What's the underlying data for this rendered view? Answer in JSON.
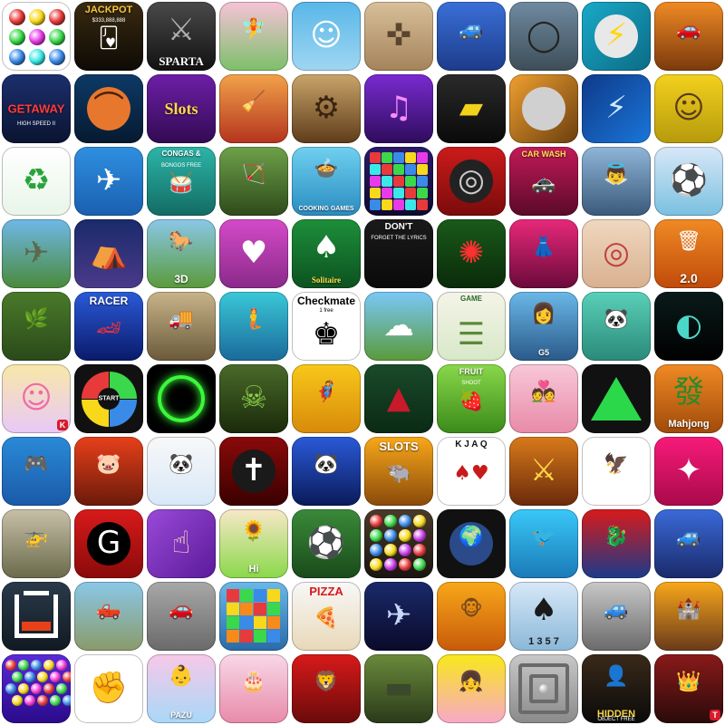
{
  "icons": [
    {
      "id": "jewel-marble-shooter",
      "bg": "linear-gradient(135deg,#1b3b12,#4a8a2a 50,#20420e)",
      "art": "orbs"
    },
    {
      "id": "jackpot-casino-cards",
      "bg": "linear-gradient(180deg,#3a2a10,#0d0a05)",
      "caption": "JACKPOT",
      "caption_pos": "top",
      "caption_size": 11,
      "caption_color": "#f4c542",
      "sub": "$333,888,888",
      "glyph": "🂻",
      "glyph_color": "#ffffff"
    },
    {
      "id": "sparta-warrior",
      "bg": "linear-gradient(180deg,#4a4a4a,#111111)",
      "caption": "SPARTA",
      "caption_pos": "bot",
      "caption_size": 13,
      "serif": true,
      "glyph": "⚔",
      "glyph_color": "#b0b0b0"
    },
    {
      "id": "fairy-dress-up",
      "bg": "linear-gradient(180deg,#f7c2d8,#7cc06a)",
      "glyph": "🧚",
      "glyph_color": "#ff6fa8"
    },
    {
      "id": "adventure-time-finn",
      "bg": "linear-gradient(180deg,#59b7e8,#9fd6f2)",
      "glyph": "☺",
      "glyph_color": "#ffffff"
    },
    {
      "id": "desert-sniper-soldiers",
      "bg": "linear-gradient(180deg,#d8c09a,#a5835a)",
      "glyph": "✜",
      "glyph_color": "#5a4630"
    },
    {
      "id": "monster-truck-race",
      "bg": "linear-gradient(180deg,#3a6fd8,#1d3c8a)",
      "glyph": "🚙",
      "glyph_color": "#ff4040"
    },
    {
      "id": "bike-stunt-loop",
      "bg": "linear-gradient(180deg,#6f8aa0,#3e4e58)",
      "glyph": "◯",
      "glyph_color": "#222222"
    },
    {
      "id": "lightning-ball",
      "bg": "linear-gradient(135deg,#19a9c9,#0c6c85)",
      "glyph": "⚡",
      "glyph_color": "#ffd700",
      "disc": "#e8e8e8"
    },
    {
      "id": "sports-car-sunset",
      "bg": "linear-gradient(180deg,#f08a24,#7a3a0c)",
      "glyph": "🚗",
      "glyph_color": "#ffb030"
    },
    {
      "id": "getaway-high-speed",
      "bg": "linear-gradient(180deg,#1c2f6e,#0a1431)",
      "caption": "GETAWAY",
      "caption_pos": "mid",
      "caption_size": 13,
      "caption_color": "#ff3b3b",
      "sub": "HIGH SPEED II"
    },
    {
      "id": "basketball-shot",
      "bg": "linear-gradient(180deg,#0d3a66,#061a30)",
      "disc": "#e8772e",
      "glyph": "⌒",
      "glyph_color": "#4a2108"
    },
    {
      "id": "vegas-slots",
      "bg": "linear-gradient(180deg,#6d1fa8,#320a52)",
      "caption": "Slots",
      "caption_pos": "mid",
      "caption_size": 18,
      "caption_color": "#ffd84a",
      "serif": true
    },
    {
      "id": "witch-broom-runner",
      "bg": "linear-gradient(180deg,#f2a24a,#b4341e)",
      "glyph": "🧹",
      "glyph_color": "#5b2a10"
    },
    {
      "id": "steampunk-robot",
      "bg": "linear-gradient(180deg,#c9a46a,#5e3c1a)",
      "glyph": "⚙",
      "glyph_color": "#3a2410"
    },
    {
      "id": "neon-girl-music",
      "bg": "linear-gradient(180deg,#7a2bd1,#2e0c5c)",
      "glyph": "♫",
      "glyph_color": "#f58cff"
    },
    {
      "id": "yellow-supercar",
      "bg": "linear-gradient(180deg,#2a2a2a,#0a0a0a)",
      "glyph": "▰",
      "glyph_color": "#f2d21a"
    },
    {
      "id": "ball-ramp-orange",
      "bg": "linear-gradient(135deg,#f0a030,#6a3e0e)",
      "disc": "#d0d0d0"
    },
    {
      "id": "electric-lightning-blue",
      "bg": "linear-gradient(135deg,#0e3a8a,#1a76d8)",
      "glyph": "⚡",
      "glyph_color": "#cfe9ff"
    },
    {
      "id": "yellow-frame-portrait",
      "bg": "linear-gradient(180deg,#f3d11d,#b59a0c)",
      "glyph": "☺",
      "glyph_color": "#5a3a1a"
    },
    {
      "id": "recycle-tap-game",
      "bg": "linear-gradient(180deg,#ffffff,#e8f5e8)",
      "glyph": "♻",
      "glyph_color": "#2aa33a"
    },
    {
      "id": "airplane-flight",
      "bg": "linear-gradient(180deg,#2f8fe0,#1a5fb0)",
      "glyph": "✈",
      "glyph_color": "#ffffff"
    },
    {
      "id": "congas-bongos",
      "bg": "linear-gradient(180deg,#2cb5a8,#136b63)",
      "caption": "CONGAS &",
      "caption_pos": "top",
      "caption_size": 8,
      "caption_color": "#ffffff",
      "sub": "BONGOS FREE",
      "glyph": "🥁",
      "glyph_color": "#8a4a1a"
    },
    {
      "id": "native-archer",
      "bg": "linear-gradient(180deg,#6ea14a,#2e4a1a)",
      "glyph": "🏹",
      "glyph_color": "#4a2a10"
    },
    {
      "id": "cooking-games",
      "bg": "linear-gradient(180deg,#6fd0f0,#2a8cc0)",
      "caption": "COOKING GAMES",
      "caption_pos": "bot",
      "caption_size": 7,
      "caption_color": "#ffffff",
      "glyph": "🍲",
      "glyph_color": "#ff7060"
    },
    {
      "id": "block-breaker-colors",
      "bg": "linear-gradient(180deg,#2b1a6a,#0f0a2e)",
      "art": "blocks"
    },
    {
      "id": "car-tyre-wheel",
      "bg": "linear-gradient(180deg,#cc1b1b,#7a0b0b)",
      "disc": "#222222",
      "glyph": "◎",
      "glyph_color": "#cccccc"
    },
    {
      "id": "police-car-wash",
      "bg": "linear-gradient(180deg,#c21a58,#5a0a28)",
      "caption": "CAR WASH",
      "caption_pos": "top",
      "caption_size": 9,
      "caption_color": "#ffe14a",
      "glyph": "🚓",
      "glyph_color": "#ffffff"
    },
    {
      "id": "angel-wings",
      "bg": "linear-gradient(180deg,#8fb5d8,#3a5a7a)",
      "glyph": "👼",
      "glyph_color": "#ffffff"
    },
    {
      "id": "tiki-football",
      "bg": "linear-gradient(180deg,#d8e8f8,#7ac0e0)",
      "glyph": "⚽",
      "glyph_color": "#222222"
    },
    {
      "id": "fighter-jet-attack",
      "bg": "linear-gradient(180deg,#6fb8e8,#4a8a3a)",
      "glyph": "✈",
      "glyph_color": "#5a6a4a"
    },
    {
      "id": "cartoon-camping",
      "bg": "linear-gradient(180deg,#1a2a6a,#4a3a8a)",
      "glyph": "⛺",
      "glyph_color": "#ff9a30"
    },
    {
      "id": "horse-3d",
      "bg": "linear-gradient(180deg,#8ac8e8,#5a9a3a)",
      "caption": "3D",
      "caption_pos": "bot",
      "caption_size": 12,
      "caption_color": "#ffffff",
      "glyph": "🐎",
      "glyph_color": "#7a4a20"
    },
    {
      "id": "park-kissing",
      "bg": "linear-gradient(180deg,#d44ac8,#8a2a8a)",
      "glyph": "♥",
      "glyph_color": "#ffffff"
    },
    {
      "id": "solitaire-magico",
      "bg": "linear-gradient(180deg,#1d8f3a,#0c5220)",
      "caption": "Solitaire",
      "caption_pos": "bot",
      "caption_size": 9,
      "caption_color": "#ffe14a",
      "serif": true,
      "glyph": "♠",
      "glyph_color": "#ffffff"
    },
    {
      "id": "dont-forget-lyrics",
      "bg": "linear-gradient(180deg,#1a1a1a,#0a0a0a)",
      "caption": "DON'T",
      "caption_pos": "top",
      "caption_size": 10,
      "caption_color": "#ffffff",
      "sub": "FORGET THE LYRICS"
    },
    {
      "id": "fireworks-green",
      "bg": "linear-gradient(180deg,#1a5a1a,#0a2a0a)",
      "glyph": "✺",
      "glyph_color": "#ff3030"
    },
    {
      "id": "party-fashion-girl",
      "bg": "linear-gradient(180deg,#e8287a,#6a0a3a)",
      "glyph": "👗",
      "glyph_color": "#ffd0e8"
    },
    {
      "id": "sushi-roll-tiles",
      "bg": "linear-gradient(180deg,#f0d8c0,#d8b090)",
      "glyph": "◎",
      "glyph_color": "#c04040"
    },
    {
      "id": "paper-toss-2",
      "bg": "linear-gradient(180deg,#f08a24,#c04a0a)",
      "caption": "2.0",
      "caption_pos": "bot",
      "caption_size": 14,
      "caption_color": "#ffffff",
      "glyph": "🗑",
      "glyph_color": "#ffffff"
    },
    {
      "id": "jungle-adventure",
      "bg": "linear-gradient(180deg,#4a7a2a,#2a4a1a)",
      "glyph": "🌿",
      "glyph_color": "#8ad04a"
    },
    {
      "id": "racer-2",
      "bg": "linear-gradient(180deg,#2a5ad8,#0a1a6a)",
      "caption": "RACER",
      "caption_pos": "top",
      "caption_size": 12,
      "caption_color": "#ffffff",
      "glyph": "🏎",
      "glyph_color": "#ff3030"
    },
    {
      "id": "army-truck",
      "bg": "linear-gradient(180deg,#c8b48a,#6a5a3a)",
      "glyph": "🚚",
      "glyph_color": "#3a4a2a"
    },
    {
      "id": "mermaid-princess",
      "bg": "linear-gradient(180deg,#3ac8d8,#1a6a9a)",
      "glyph": "🧜",
      "glyph_color": "#ff6a9a"
    },
    {
      "id": "checkmate-chess",
      "bg": "#ffffff",
      "caption": "Checkmate",
      "caption_pos": "top",
      "caption_size": 12,
      "caption_color": "#000000",
      "dark": true,
      "glyph": "♚",
      "glyph_color": "#000000",
      "sub": "1   free",
      "sub_color": "#000000"
    },
    {
      "id": "platform-jumper",
      "bg": "linear-gradient(180deg,#7ac8f8,#5a9a3a)",
      "glyph": "☁",
      "glyph_color": "#ffffff"
    },
    {
      "id": "brain-game-quiz",
      "bg": "linear-gradient(180deg,#f4f4e8,#d8e8c8)",
      "caption": "GAME",
      "caption_pos": "top",
      "caption_size": 8,
      "caption_color": "#2a6a2a",
      "dark": true,
      "glyph": "☰",
      "glyph_color": "#5a8a3a"
    },
    {
      "id": "hidden-detective-g5",
      "bg": "linear-gradient(180deg,#6ab8e8,#2a5a8a)",
      "caption": "G5",
      "caption_pos": "bot",
      "caption_size": 9,
      "caption_color": "#ffffff",
      "glyph": "👩",
      "glyph_color": "#c07040"
    },
    {
      "id": "kids-animals-panda",
      "bg": "linear-gradient(180deg,#5ad0b8,#2a8a7a)",
      "glyph": "🐼",
      "glyph_color": "#222222"
    },
    {
      "id": "dark-spotlight",
      "bg": "linear-gradient(180deg,#0a1a1a,#000000)",
      "glyph": "◐",
      "glyph_color": "#4ad8c8"
    },
    {
      "id": "anime-girl-k",
      "bg": "linear-gradient(180deg,#f8e8a8,#e8c8f8)",
      "glyph": "☺",
      "glyph_color": "#f06aa8",
      "badge": "K",
      "badge_color": "#d81a2a"
    },
    {
      "id": "simon-colors-start",
      "bg": "#111111",
      "art": "simon",
      "caption": "START",
      "caption_pos": "mid",
      "caption_size": 7,
      "caption_color": "#ffffff"
    },
    {
      "id": "neon-green-ring",
      "bg": "#000000",
      "art": "ring"
    },
    {
      "id": "zombie-horde",
      "bg": "linear-gradient(180deg,#4a6a2a,#1a2a0a)",
      "glyph": "☠",
      "glyph_color": "#8ad04a"
    },
    {
      "id": "superhero-runner",
      "bg": "linear-gradient(180deg,#f8c81a,#d88a0a)",
      "glyph": "🦸",
      "glyph_color": "#2a2a6a"
    },
    {
      "id": "minnesota-wild",
      "bg": "linear-gradient(180deg,#1a4a2a,#0a2a14)",
      "glyph": "▲",
      "glyph_color": "#c81a2a"
    },
    {
      "id": "fruit-shoot",
      "bg": "linear-gradient(180deg,#8ad84a,#3a8a1a)",
      "caption": "FRUIT",
      "caption_pos": "top",
      "caption_size": 9,
      "caption_color": "#ffffff",
      "sub": "SHOOT",
      "glyph": "🍓",
      "glyph_color": "#e81a3a"
    },
    {
      "id": "just-married-couple",
      "bg": "linear-gradient(180deg,#f8c8d8,#e88aa8)",
      "glyph": "💑",
      "glyph_color": "#8a2a4a"
    },
    {
      "id": "green-shapes-dark",
      "bg": "#111111",
      "art": "triangle"
    },
    {
      "id": "mahjong-tiles",
      "bg": "linear-gradient(180deg,#f08a24,#a04a0a)",
      "caption": "Mahjong",
      "caption_pos": "bot",
      "caption_size": 11,
      "caption_color": "#ffffff",
      "glyph": "發",
      "glyph_color": "#2a8a2a"
    },
    {
      "id": "learn-spanish-games",
      "bg": "linear-gradient(180deg,#2a8ad8,#1a5aa8)",
      "glyph": "🎮",
      "glyph_color": "#ff4a6a"
    },
    {
      "id": "angry-pig-fire",
      "bg": "linear-gradient(180deg,#e8401a,#6a1a0a)",
      "glyph": "🐷",
      "glyph_color": "#5ac83a"
    },
    {
      "id": "panda-kid-magnifier",
      "bg": "linear-gradient(180deg,#f8f8f8,#d8e8f8)",
      "glyph": "🐼",
      "glyph_color": "#222222"
    },
    {
      "id": "dark-red-circle-emblem",
      "bg": "linear-gradient(180deg,#8a0a0a,#3a0000)",
      "disc": "#1a1a1a",
      "glyph": "✝",
      "glyph_color": "#ffffff"
    },
    {
      "id": "kung-fu-panda-warrior",
      "bg": "linear-gradient(180deg,#2a5ad8,#0a1a5a)",
      "glyph": "🐼",
      "glyph_color": "#ffffff"
    },
    {
      "id": "bison-slots",
      "bg": "linear-gradient(180deg,#f8a81a,#8a4a0a)",
      "caption": "SLOTS",
      "caption_pos": "top",
      "caption_size": 13,
      "caption_color": "#ffffff",
      "glyph": "🐃",
      "glyph_color": "#4a2a10"
    },
    {
      "id": "poker-cards-spread",
      "bg": "#ffffff",
      "caption": "K J A Q",
      "caption_pos": "top",
      "caption_size": 10,
      "caption_color": "#111111",
      "dark": true,
      "glyph": "♠♥",
      "glyph_color": "#c81a1a"
    },
    {
      "id": "heroes-vs-monsters",
      "bg": "linear-gradient(180deg,#d87a1a,#6a2a0a)",
      "glyph": "⚔",
      "glyph_color": "#ffd84a"
    },
    {
      "id": "atlanta-falcons",
      "bg": "#ffffff",
      "glyph": "🦅",
      "glyph_color": "#c81a1a"
    },
    {
      "id": "pink-stickman",
      "bg": "linear-gradient(180deg,#f81a7a,#a80a4a)",
      "glyph": "✦",
      "glyph_color": "#ffffff"
    },
    {
      "id": "army-helicopter-tank",
      "bg": "linear-gradient(180deg,#c8c0a8,#6a6a4a)",
      "glyph": "🚁",
      "glyph_color": "#3a3a2a"
    },
    {
      "id": "georgia-bulldogs",
      "bg": "linear-gradient(180deg,#d81a1a,#8a0a0a)",
      "disc": "#000000",
      "glyph": "G",
      "glyph_color": "#ffffff"
    },
    {
      "id": "purple-swipe",
      "bg": "linear-gradient(135deg,#9a4ad8,#5a1a9a)",
      "glyph": "☝",
      "glyph_color": "#f8d8b8"
    },
    {
      "id": "plants-hi",
      "bg": "linear-gradient(180deg,#f8e8c8,#8ad84a)",
      "caption": "Hi",
      "caption_pos": "bot",
      "caption_size": 11,
      "caption_color": "#ffffff",
      "glyph": "🌻",
      "glyph_color": "#f8c81a"
    },
    {
      "id": "soccer-stadium",
      "bg": "linear-gradient(180deg,#3a8a3a,#1a4a1a)",
      "glyph": "⚽",
      "glyph_color": "#ffffff"
    },
    {
      "id": "gem-match-stones",
      "bg": "linear-gradient(180deg,#4a3a2a,#1a1410)",
      "art": "gems"
    },
    {
      "id": "world-globe-lite",
      "bg": "#111111",
      "disc": "#2a4a8a",
      "glyph": "🌍",
      "glyph_color": "#4ac83a"
    },
    {
      "id": "bird-cartoon-blue",
      "bg": "linear-gradient(180deg,#3ac8f8,#1a7ab8)",
      "glyph": "🐦",
      "glyph_color": "#f8a81a"
    },
    {
      "id": "dragon-fighter",
      "bg": "linear-gradient(180deg,#d81a1a,#1a3a8a)",
      "glyph": "🐉",
      "glyph_color": "#4ad8f8"
    },
    {
      "id": "hummer-suv-red",
      "bg": "linear-gradient(180deg,#3a6ad8,#1a2a6a)",
      "glyph": "🚙",
      "glyph_color": "#c81a1a"
    },
    {
      "id": "dark-box-outline",
      "bg": "linear-gradient(180deg,#2a3a4a,#111a22)",
      "art": "box"
    },
    {
      "id": "pickup-truck",
      "bg": "linear-gradient(180deg,#8ac8e8,#8a9a6a)",
      "glyph": "🛻",
      "glyph_color": "#ffffff"
    },
    {
      "id": "car-parking-drift",
      "bg": "linear-gradient(180deg,#a8a8a8,#6a6a6a)",
      "glyph": "🚗",
      "glyph_color": "#e81a3a"
    },
    {
      "id": "block-puzzle-grid",
      "bg": "linear-gradient(180deg,#6ab8e8,#2a6aa8)",
      "art": "puzzle"
    },
    {
      "id": "pizza-maker",
      "bg": "linear-gradient(180deg,#f8f8f8,#e8d8b8)",
      "caption": "PIZZA",
      "caption_pos": "top",
      "caption_size": 13,
      "caption_color": "#d81a1a",
      "dark": true,
      "glyph": "🍕",
      "glyph_color": "#e88a1a"
    },
    {
      "id": "sky-warrior-jets",
      "bg": "linear-gradient(180deg,#1a2a6a,#0a0a2a)",
      "glyph": "✈",
      "glyph_color": "#c8d8f8"
    },
    {
      "id": "cute-monkey-fruit",
      "bg": "linear-gradient(180deg,#f8a81a,#c85a0a)",
      "glyph": "🐵",
      "glyph_color": "#7a4a1a"
    },
    {
      "id": "rummy-tiles-1357",
      "bg": "linear-gradient(180deg,#d8e8f8,#8ab8d8)",
      "caption": "1 3 5 7",
      "caption_pos": "bot",
      "caption_size": 11,
      "caption_color": "#1a1a1a",
      "dark": true,
      "glyph": "♠",
      "glyph_color": "#1a1a1a"
    },
    {
      "id": "suv-city-parking",
      "bg": "linear-gradient(180deg,#c8c8c8,#6a6a6a)",
      "glyph": "🚙",
      "glyph_color": "#3a3a3a"
    },
    {
      "id": "catapult-castle",
      "bg": "linear-gradient(180deg,#f8a81a,#6a3a1a)",
      "glyph": "🏰",
      "glyph_color": "#5a3a1a"
    },
    {
      "id": "bubble-shooter-pop",
      "bg": "linear-gradient(180deg,#5a2ad8,#2a0a8a)",
      "art": "bubbles"
    },
    {
      "id": "punch-fist",
      "bg": "#ffffff",
      "glyph": "✊",
      "glyph_color": "#e8a870"
    },
    {
      "id": "baby-care-pazu",
      "bg": "linear-gradient(180deg,#f8c8e8,#a8d8f8)",
      "caption": "PAZU",
      "caption_pos": "bot",
      "caption_size": 9,
      "caption_color": "#ffffff",
      "glyph": "👶",
      "glyph_color": "#e8a870"
    },
    {
      "id": "cake-baker-queen",
      "bg": "linear-gradient(180deg,#f8d8e8,#e88aa8)",
      "glyph": "🎂",
      "glyph_color": "#c81a5a"
    },
    {
      "id": "angry-lion-cartoon",
      "bg": "linear-gradient(180deg,#d81a1a,#6a0a0a)",
      "glyph": "🦁",
      "glyph_color": "#f8c81a"
    },
    {
      "id": "army-tank-battle",
      "bg": "linear-gradient(180deg,#6a8a3a,#2a3a1a)",
      "glyph": "▬",
      "glyph_color": "#3a4a2a"
    },
    {
      "id": "baby-princess-care",
      "bg": "linear-gradient(180deg,#f8e81a,#f8a8c8)",
      "glyph": "👧",
      "glyph_color": "#e8607a"
    },
    {
      "id": "grey-box-maze",
      "bg": "linear-gradient(180deg,#c8c8c8,#8a8a8a)",
      "art": "maze"
    },
    {
      "id": "hidden-object-free",
      "bg": "linear-gradient(180deg,#3a2a1a,#0a0a0a)",
      "caption": "HIDDEN",
      "caption_pos": "bot",
      "caption_size": 11,
      "caption_color": "#f8d84a",
      "sub": "OBJECT FREE",
      "glyph": "👤",
      "glyph_color": "#c8a87a"
    },
    {
      "id": "king-warrior-battle",
      "bg": "linear-gradient(180deg,#8a1a1a,#2a0a0a)",
      "glyph": "👑",
      "glyph_color": "#f8c81a",
      "badge": "T",
      "badge_color": "#d81a2a"
    }
  ]
}
